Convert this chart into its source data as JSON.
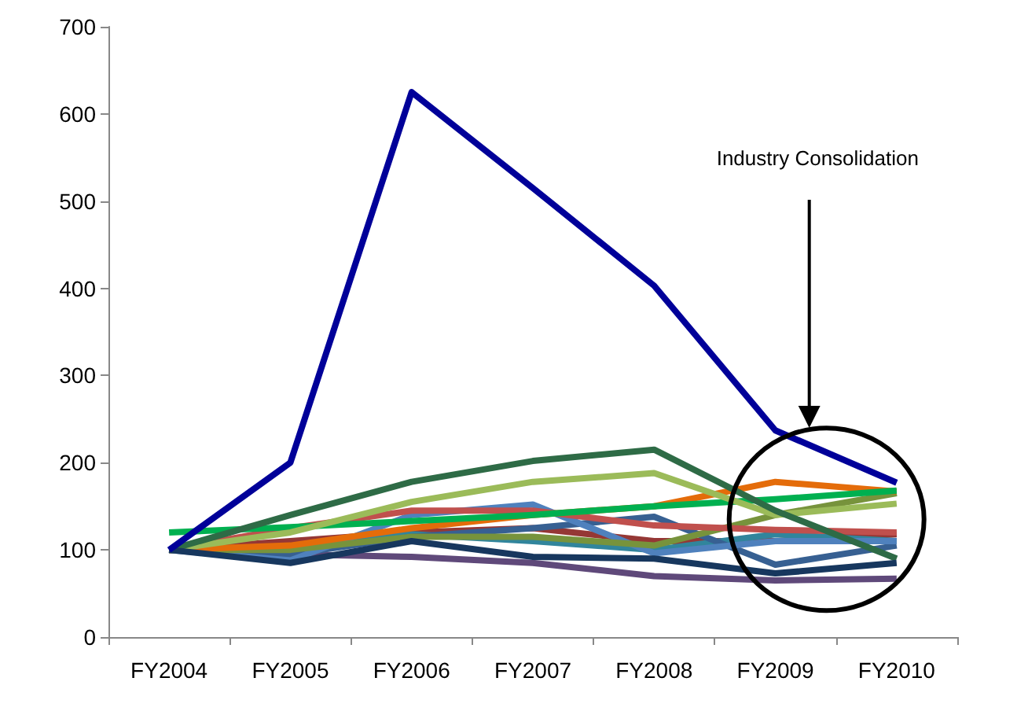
{
  "chart_data": {
    "type": "line",
    "categories": [
      "FY2004",
      "FY2005",
      "FY2006",
      "FY2007",
      "FY2008",
      "FY2009",
      "FY2010"
    ],
    "ylim": [
      0,
      700
    ],
    "yticks": [
      0,
      100,
      200,
      300,
      400,
      500,
      600,
      700
    ],
    "grid": false,
    "marker": "none",
    "line_style": "solid",
    "annotations": [
      "Industry Consolidation"
    ],
    "series": [
      {
        "color": "#5f497a",
        "values": [
          100,
          95,
          92,
          85,
          70,
          65,
          67
        ]
      },
      {
        "color": "#953735",
        "values": [
          100,
          110,
          120,
          125,
          110,
          110,
          118
        ]
      },
      {
        "color": "#31859c",
        "values": [
          100,
          100,
          118,
          110,
          100,
          118,
          110
        ]
      },
      {
        "color": "#376092",
        "values": [
          100,
          95,
          115,
          125,
          138,
          83,
          105
        ]
      },
      {
        "color": "#4f81bd",
        "values": [
          100,
          88,
          140,
          152,
          96,
          110,
          110
        ]
      },
      {
        "color": "#77933c",
        "values": [
          100,
          100,
          115,
          115,
          105,
          140,
          165
        ]
      },
      {
        "color": "#c0504d",
        "values": [
          100,
          125,
          145,
          145,
          128,
          123,
          120
        ]
      },
      {
        "color": "#e46c0a",
        "values": [
          100,
          105,
          125,
          140,
          150,
          178,
          167
        ]
      },
      {
        "color": "#00b050",
        "values": [
          120,
          126,
          133,
          140,
          150,
          158,
          168
        ]
      },
      {
        "color": "#9bbb59",
        "values": [
          100,
          120,
          155,
          178,
          188,
          140,
          153
        ]
      },
      {
        "color": "#2e6b46",
        "values": [
          100,
          140,
          178,
          202,
          215,
          145,
          90
        ]
      },
      {
        "color": "#17375e",
        "values": [
          100,
          85,
          110,
          92,
          90,
          73,
          85
        ]
      },
      {
        "color": "#000099",
        "values": [
          100,
          200,
          625,
          515,
          403,
          237,
          177
        ]
      }
    ]
  }
}
